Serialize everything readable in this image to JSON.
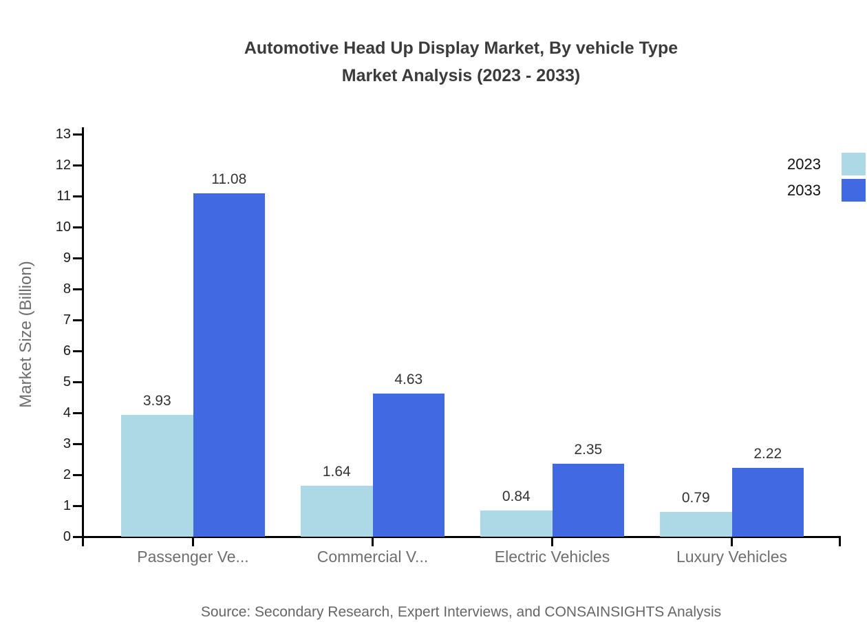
{
  "chart_data": {
    "type": "bar",
    "title_line1": "Automotive Head Up Display Market, By vehicle Type",
    "title_line2": "Market Analysis (2023 - 2033)",
    "ylabel": "Market Size (Billion)",
    "ylim": [
      0,
      13
    ],
    "yticks": [
      0,
      1,
      2,
      3,
      4,
      5,
      6,
      7,
      8,
      9,
      10,
      11,
      12,
      13
    ],
    "grid": false,
    "legend_position": "top-right",
    "categories": [
      "Passenger Ve...",
      "Commercial V...",
      "Electric Vehicles",
      "Luxury Vehicles"
    ],
    "series": [
      {
        "name": "2023",
        "color": "#ADD8E6",
        "values": [
          3.93,
          1.64,
          0.84,
          0.79
        ]
      },
      {
        "name": "2033",
        "color": "#4169E1",
        "values": [
          11.08,
          4.63,
          2.35,
          2.22
        ]
      }
    ],
    "value_labels": [
      "3.93",
      "11.08",
      "1.64",
      "4.63",
      "0.84",
      "2.35",
      "0.79",
      "2.22"
    ],
    "source": "Source: Secondary Research, Expert Interviews, and CONSAINSIGHTS Analysis"
  }
}
